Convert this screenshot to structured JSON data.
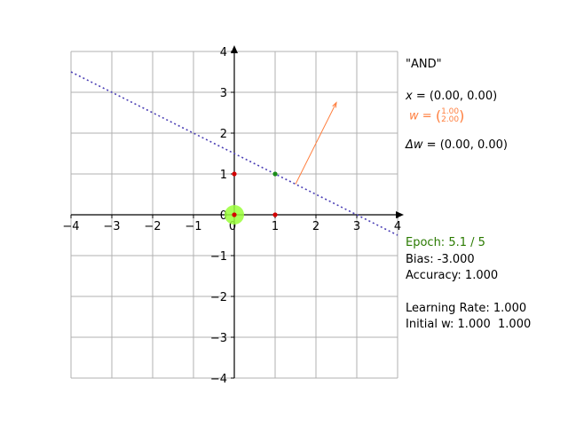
{
  "chart_data": {
    "type": "scatter",
    "xlim": [
      -4,
      4
    ],
    "ylim": [
      -4,
      4
    ],
    "xticks": [
      -4,
      -3,
      -2,
      -1,
      0,
      1,
      2,
      3,
      4
    ],
    "yticks": [
      -4,
      -3,
      -2,
      -1,
      0,
      1,
      2,
      3,
      4
    ],
    "grid": true,
    "points": [
      {
        "x": 0,
        "y": 0,
        "color": "#d40000"
      },
      {
        "x": 0,
        "y": 1,
        "color": "#d40000"
      },
      {
        "x": 1,
        "y": 0,
        "color": "#d40000"
      },
      {
        "x": 1,
        "y": 1,
        "color": "#1a8c1a"
      }
    ],
    "highlight_point": {
      "x": 0,
      "y": 0,
      "color": "#9aff3a"
    },
    "decision_boundary": {
      "slope": -0.5,
      "intercept": 1.5,
      "style": "dotted",
      "color": "#4b3fb5"
    },
    "weight_arrow": {
      "from": [
        1.5,
        0.75
      ],
      "to": [
        2.5,
        2.75
      ],
      "color": "#ff7f3f"
    }
  },
  "panel": {
    "title": "\"AND\"",
    "x_label": "x",
    "x_value": " = (0.00, 0.00)",
    "w_label": "w",
    "w_eq": " = ",
    "w_top": "1.00",
    "w_bottom": "2.00",
    "dw_label": "Δw",
    "dw_value": " = (0.00, 0.00)",
    "epoch": "Epoch: 5.1 / 5",
    "bias": "Bias: -3.000",
    "accuracy": "Accuracy: 1.000",
    "learning_rate": "Learning Rate: 1.000",
    "initial_w": "Initial w: 1.000  1.000"
  },
  "colors": {
    "grid": "#b0b0b0",
    "axis": "#000000",
    "epoch_text": "#2a7a00",
    "w_text": "#ff7f3f"
  }
}
